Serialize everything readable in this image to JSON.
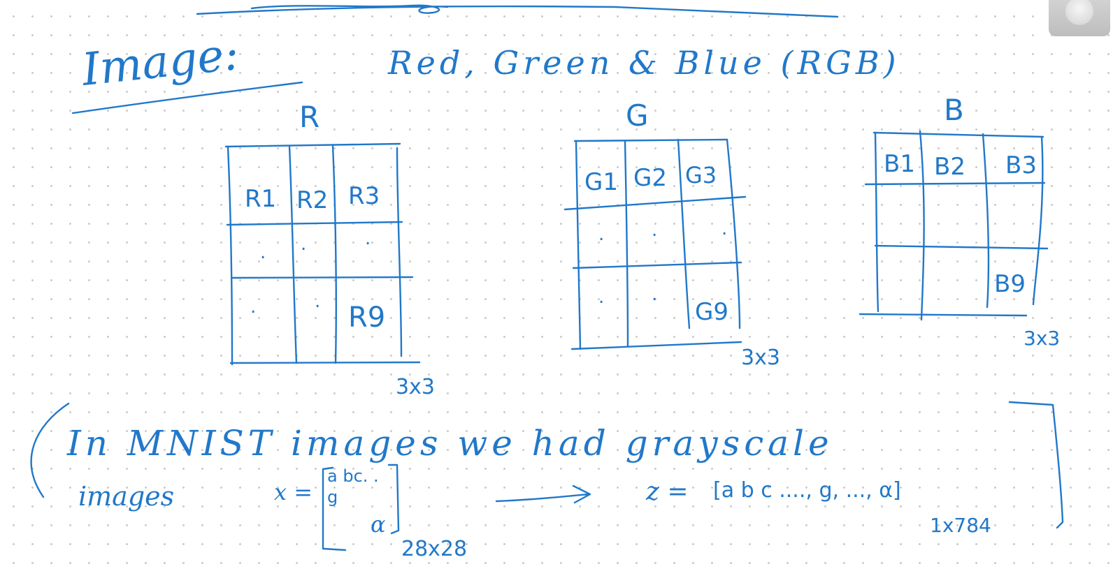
{
  "heading": {
    "title": "Image:",
    "subtitle": "Red, Green & Blue (RGB)"
  },
  "matrices": [
    {
      "channel": "R",
      "cells": [
        "R1",
        "R2",
        "R3",
        ".",
        ".",
        ".",
        ".",
        ".",
        "R9"
      ],
      "dims": "3x3"
    },
    {
      "channel": "G",
      "cells": [
        "G1",
        "G2",
        "G3",
        ".",
        ".",
        ".",
        ".",
        ".",
        "G9"
      ],
      "dims": "3x3"
    },
    {
      "channel": "B",
      "cells": [
        "B1",
        "B2",
        "B3",
        "",
        "",
        "",
        "",
        "",
        "B9"
      ],
      "dims": "3x3"
    }
  ],
  "note": {
    "line1": "In MNIST images we had grayscale",
    "line2": "images",
    "x_label": "x =",
    "x_row1": "a bc. .",
    "x_row2": "g",
    "x_row3": "α",
    "x_dims": "28x28",
    "z_label": "z =",
    "z_vector": "[a b c ...., g, ..., α]",
    "z_dims": "1x784"
  },
  "colors": {
    "ink": "#2178c9",
    "paper": "#ffffff",
    "dots": "#c9c9c9"
  }
}
